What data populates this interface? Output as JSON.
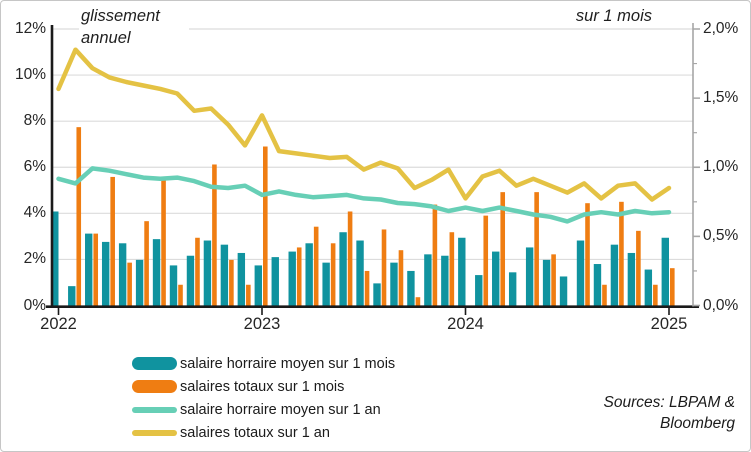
{
  "titles": {
    "left_axis_title": "glissement annuel",
    "right_axis_title": "sur 1 mois"
  },
  "source_note": "Sources: LBPAM & Bloomberg",
  "chart_data": {
    "type": "bar+line combo",
    "grid": "horizontal",
    "legend_position": "bottom-left",
    "months": [
      "2022-01",
      "2022-02",
      "2022-03",
      "2022-04",
      "2022-05",
      "2022-06",
      "2022-07",
      "2022-08",
      "2022-09",
      "2022-10",
      "2022-11",
      "2022-12",
      "2023-01",
      "2023-02",
      "2023-03",
      "2023-04",
      "2023-05",
      "2023-06",
      "2023-07",
      "2023-08",
      "2023-09",
      "2023-10",
      "2023-11",
      "2023-12",
      "2024-01",
      "2024-02",
      "2024-03",
      "2024-04",
      "2024-05",
      "2024-06",
      "2024-07",
      "2024-08",
      "2024-09",
      "2024-10",
      "2024-11",
      "2024-12",
      "2025-01"
    ],
    "x_ticks": [
      {
        "label": "2022",
        "month_index": 0
      },
      {
        "label": "2023",
        "month_index": 12
      },
      {
        "label": "2024",
        "month_index": 24
      },
      {
        "label": "2025",
        "month_index": 36
      }
    ],
    "left_axis": {
      "title": "glissement annuel",
      "range": [
        0,
        12
      ],
      "tick_values": [
        0,
        2,
        4,
        6,
        8,
        10,
        12
      ],
      "tick_labels": [
        "0%",
        "2%",
        "4%",
        "6%",
        "8%",
        "10%",
        "12%"
      ]
    },
    "right_axis": {
      "title": "sur 1 mois",
      "range": [
        0,
        2
      ],
      "tick_values": [
        0,
        0.5,
        1,
        1.5,
        2
      ],
      "tick_labels": [
        "0,0%",
        "0,5%",
        "1,0%",
        "1,5%",
        "2,0%"
      ],
      "minor_tick_values": [
        0.25,
        0.75,
        1.25,
        1.75
      ]
    },
    "series": [
      {
        "name": "salaire horraire moyen sur 1 mois",
        "type": "bar",
        "axis": "right",
        "color": "#10939F",
        "values": [
          0.68,
          0.14,
          0.52,
          0.46,
          0.45,
          0.33,
          0.48,
          0.29,
          0.36,
          0.47,
          0.44,
          0.38,
          0.29,
          0.35,
          0.39,
          0.45,
          0.31,
          0.53,
          0.47,
          0.16,
          0.31,
          0.25,
          0.37,
          0.36,
          0.49,
          0.22,
          0.39,
          0.24,
          0.42,
          0.33,
          0.21,
          0.47,
          0.3,
          0.44,
          0.38,
          0.26,
          0.49
        ]
      },
      {
        "name": "salaires totaux sur 1 mois",
        "type": "bar",
        "axis": "right",
        "color": "#EF7D12",
        "values": [
          0,
          1.29,
          0.52,
          0.93,
          0.31,
          0.61,
          0.92,
          0.15,
          0.49,
          1.02,
          0.33,
          0.15,
          1.15,
          0,
          0.42,
          0.57,
          0.45,
          0.68,
          0.25,
          0.55,
          0.4,
          0.06,
          0.73,
          0.53,
          0,
          0.65,
          0.82,
          0,
          0.82,
          0.37,
          0,
          0.74,
          0.15,
          0.75,
          0.54,
          0.15,
          0.27
        ]
      },
      {
        "name": "salaire horraire moyen sur 1 an",
        "type": "line",
        "axis": "left",
        "color": "#67CFB6",
        "values": [
          5.5,
          5.3,
          5.95,
          5.85,
          5.7,
          5.55,
          5.5,
          5.55,
          5.4,
          5.15,
          5.1,
          5.2,
          4.8,
          4.95,
          4.8,
          4.7,
          4.75,
          4.8,
          4.65,
          4.6,
          4.45,
          4.4,
          4.3,
          4.1,
          4.25,
          4.1,
          4.25,
          4.1,
          3.95,
          3.85,
          3.65,
          3.95,
          4.05,
          3.95,
          4.1,
          4.0,
          4.05
        ]
      },
      {
        "name": "salaires totaux sur 1 an",
        "type": "line",
        "axis": "left",
        "color": "#E4C244",
        "values": [
          9.4,
          11.1,
          10.3,
          9.9,
          9.7,
          9.55,
          9.4,
          9.2,
          8.45,
          8.55,
          7.85,
          6.95,
          8.25,
          6.7,
          6.6,
          6.5,
          6.4,
          6.45,
          5.9,
          6.2,
          5.95,
          5.1,
          5.45,
          5.9,
          4.65,
          5.6,
          5.85,
          5.2,
          5.5,
          5.2,
          4.9,
          5.3,
          4.65,
          5.2,
          5.3,
          4.6,
          5.1
        ]
      }
    ],
    "colors": {
      "grid": "#dcdcdc",
      "axis": "#1a1a1a",
      "axis_right": "#a6a6a6",
      "text": "#262626"
    }
  }
}
